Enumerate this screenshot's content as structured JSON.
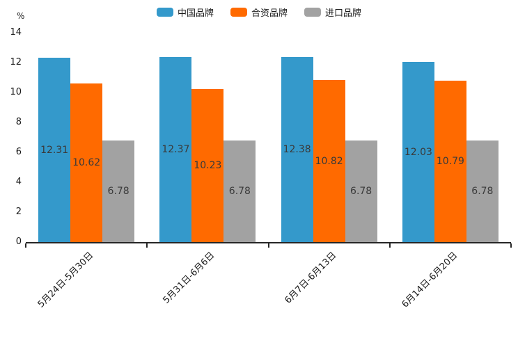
{
  "chart_data": {
    "type": "bar",
    "title": "",
    "ylabel_unit": "%",
    "categories": [
      "5月24日-5月30日",
      "5月31日-6月6日",
      "6月7日-6月13日",
      "6月14日-6月20日"
    ],
    "series": [
      {
        "name": "中国品牌",
        "color": "#3499CB",
        "values": [
          12.31,
          12.37,
          12.38,
          12.03
        ]
      },
      {
        "name": "合资品牌",
        "color": "#FF6A00",
        "values": [
          10.62,
          10.23,
          10.82,
          10.79
        ]
      },
      {
        "name": "进口品牌",
        "color": "#A2A2A2",
        "values": [
          6.78,
          6.78,
          6.78,
          6.78
        ]
      }
    ],
    "ylim": [
      0,
      14
    ],
    "yticks": [
      0,
      2,
      4,
      6,
      8,
      10,
      12,
      14
    ],
    "legend_position": "top",
    "grid": false,
    "value_labels": true,
    "value_label_position": "middle-of-bar",
    "background": "#ffffff",
    "axis_color": "#262626"
  }
}
